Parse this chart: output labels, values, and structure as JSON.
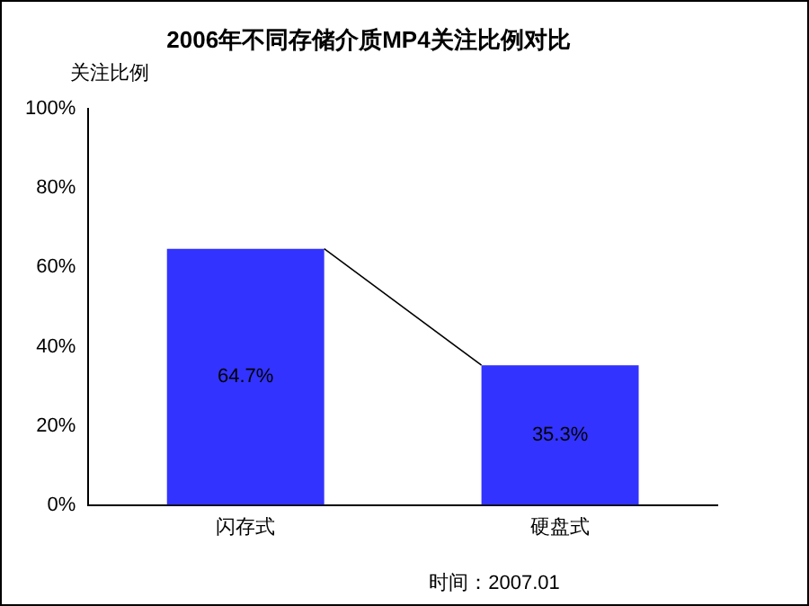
{
  "chart_data": {
    "type": "bar",
    "title": "2006年不同存储介质MP4关注比例对比",
    "ylabel": "关注比例",
    "categories": [
      "闪存式",
      "硬盘式"
    ],
    "values": [
      64.7,
      35.3
    ],
    "color": "#3333ff",
    "value_labels": [
      "64.7%",
      "35.3%"
    ],
    "ylim": [
      0,
      100
    ],
    "yticks": [
      {
        "value": 0,
        "label": "0%"
      },
      {
        "value": 20,
        "label": "20%"
      },
      {
        "value": 40,
        "label": "40%"
      },
      {
        "value": 60,
        "label": "60%"
      },
      {
        "value": 80,
        "label": "80%"
      },
      {
        "value": 100,
        "label": "100%"
      }
    ],
    "grid": false,
    "legend": false,
    "annotations": [
      "时间：2007.01"
    ]
  }
}
